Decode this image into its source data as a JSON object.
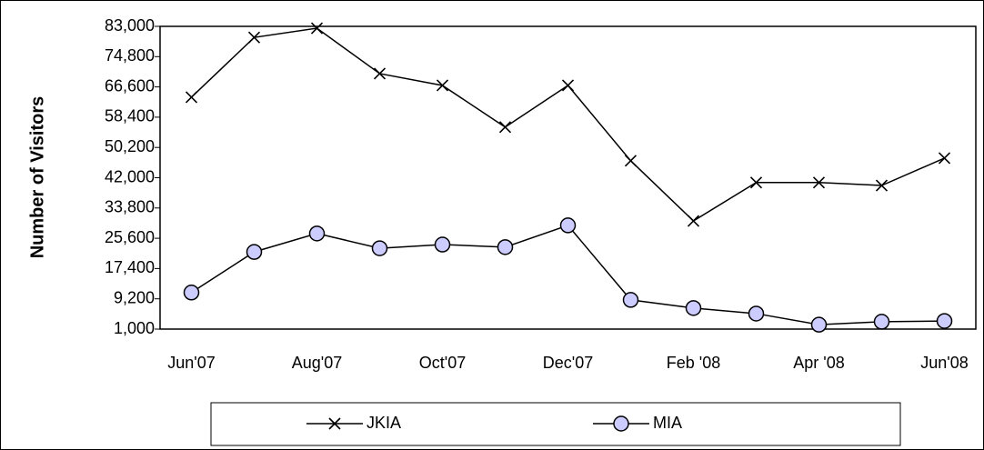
{
  "chart_data": {
    "type": "line",
    "y_label": "Number of Visitors",
    "categories": [
      "Jun'07",
      null,
      "Aug'07",
      null,
      "Oct'07",
      null,
      "Dec'07",
      null,
      "Feb '08",
      null,
      "Apr '08",
      null,
      "Jun'08"
    ],
    "series": [
      {
        "name": "JKIA",
        "color": "#000000",
        "marker": "x",
        "values": [
          63800,
          80000,
          82500,
          70200,
          67000,
          55700,
          67000,
          46600,
          30300,
          40700,
          40700,
          39900,
          47300
        ]
      },
      {
        "name": "MIA",
        "color": "#000000",
        "marker": "o",
        "marker_color": "#ccccff",
        "values": [
          10900,
          21900,
          26900,
          22900,
          23900,
          23200,
          29100,
          8900,
          6700,
          5200,
          2200,
          3000,
          3200
        ]
      }
    ],
    "ylim": [
      1000,
      83000
    ],
    "yticks": [
      {
        "value": 1000,
        "label": "1,000"
      },
      {
        "value": 9200,
        "label": "9,200"
      },
      {
        "value": 17400,
        "label": "17,400"
      },
      {
        "value": 25600,
        "label": "25,600"
      },
      {
        "value": 33800,
        "label": "33,800"
      },
      {
        "value": 42000,
        "label": "42,000"
      },
      {
        "value": 50200,
        "label": "50,200"
      },
      {
        "value": 58400,
        "label": "58,400"
      },
      {
        "value": 66600,
        "label": "66,600"
      },
      {
        "value": 74800,
        "label": "74,800"
      },
      {
        "value": 83000,
        "label": "83,000"
      }
    ],
    "legend": "bottom"
  }
}
